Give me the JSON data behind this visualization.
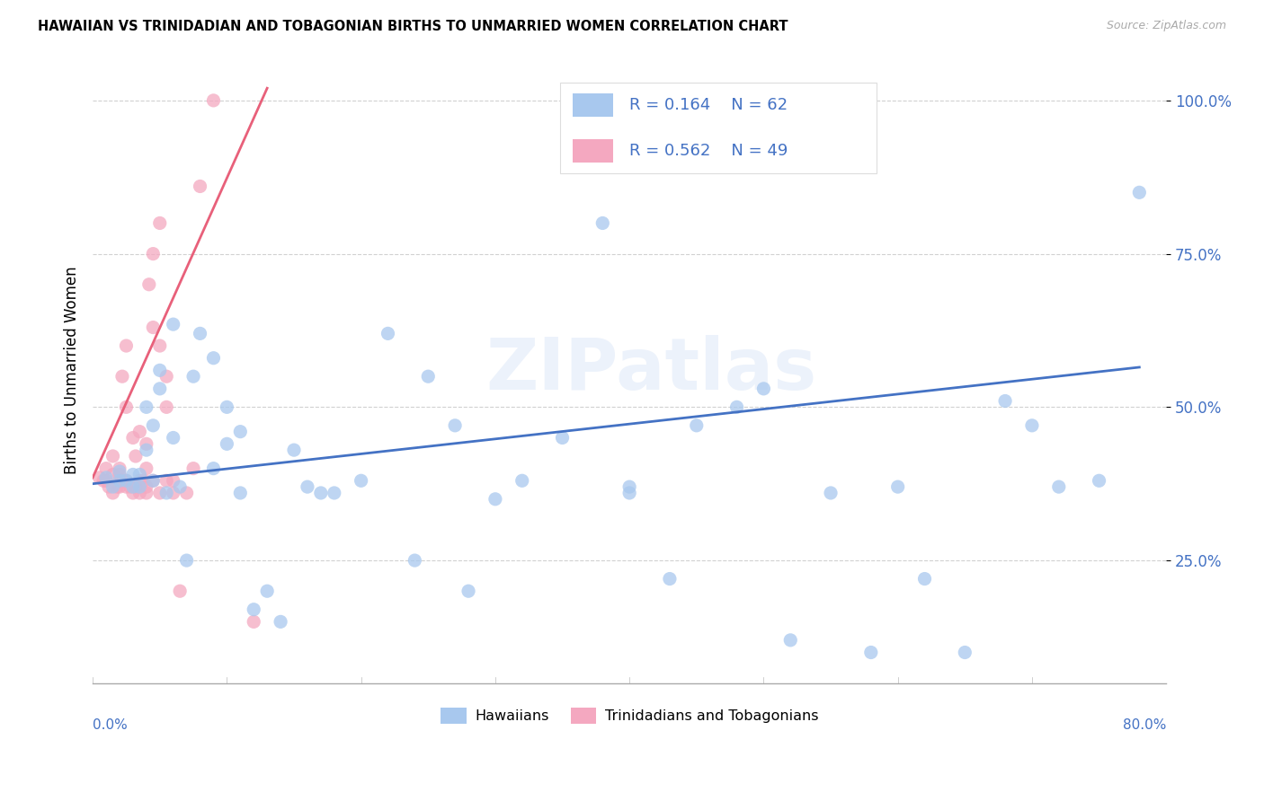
{
  "title": "HAWAIIAN VS TRINIDADIAN AND TOBAGONIAN BIRTHS TO UNMARRIED WOMEN CORRELATION CHART",
  "source": "Source: ZipAtlas.com",
  "ylabel": "Births to Unmarried Women",
  "xmin": 0.0,
  "xmax": 0.8,
  "ymin": 0.05,
  "ymax": 1.07,
  "legend_R1": "R = 0.164",
  "legend_N1": "N = 62",
  "legend_R2": "R = 0.562",
  "legend_N2": "N = 49",
  "hawaiian_color": "#A8C8EE",
  "trinidadian_color": "#F4A8C0",
  "trendline_hawaiian_color": "#4472C4",
  "trendline_trinidadian_color": "#E8607A",
  "watermark": "ZIPatlas",
  "hawaiian_x": [
    0.01,
    0.015,
    0.02,
    0.02,
    0.025,
    0.03,
    0.03,
    0.035,
    0.035,
    0.04,
    0.04,
    0.045,
    0.045,
    0.05,
    0.05,
    0.055,
    0.06,
    0.06,
    0.065,
    0.07,
    0.075,
    0.08,
    0.09,
    0.09,
    0.1,
    0.1,
    0.11,
    0.11,
    0.12,
    0.13,
    0.14,
    0.15,
    0.16,
    0.17,
    0.18,
    0.2,
    0.22,
    0.24,
    0.25,
    0.27,
    0.28,
    0.3,
    0.32,
    0.35,
    0.38,
    0.4,
    0.4,
    0.43,
    0.45,
    0.48,
    0.5,
    0.52,
    0.55,
    0.58,
    0.6,
    0.62,
    0.65,
    0.68,
    0.7,
    0.72,
    0.75,
    0.78
  ],
  "hawaiian_y": [
    0.385,
    0.37,
    0.395,
    0.38,
    0.38,
    0.37,
    0.39,
    0.37,
    0.39,
    0.43,
    0.5,
    0.38,
    0.47,
    0.56,
    0.53,
    0.36,
    0.45,
    0.635,
    0.37,
    0.25,
    0.55,
    0.62,
    0.4,
    0.58,
    0.44,
    0.5,
    0.36,
    0.46,
    0.17,
    0.2,
    0.15,
    0.43,
    0.37,
    0.36,
    0.36,
    0.38,
    0.62,
    0.25,
    0.55,
    0.47,
    0.2,
    0.35,
    0.38,
    0.45,
    0.8,
    0.37,
    0.36,
    0.22,
    0.47,
    0.5,
    0.53,
    0.12,
    0.36,
    0.1,
    0.37,
    0.22,
    0.1,
    0.51,
    0.47,
    0.37,
    0.38,
    0.85
  ],
  "trinidadian_x": [
    0.005,
    0.008,
    0.01,
    0.01,
    0.012,
    0.015,
    0.015,
    0.015,
    0.018,
    0.02,
    0.02,
    0.02,
    0.022,
    0.022,
    0.025,
    0.025,
    0.025,
    0.025,
    0.028,
    0.03,
    0.03,
    0.032,
    0.032,
    0.035,
    0.035,
    0.035,
    0.038,
    0.04,
    0.04,
    0.04,
    0.04,
    0.042,
    0.045,
    0.045,
    0.045,
    0.05,
    0.05,
    0.05,
    0.055,
    0.055,
    0.055,
    0.06,
    0.06,
    0.065,
    0.07,
    0.075,
    0.08,
    0.09,
    0.12
  ],
  "trinidadian_y": [
    0.385,
    0.38,
    0.38,
    0.4,
    0.37,
    0.36,
    0.39,
    0.42,
    0.37,
    0.37,
    0.39,
    0.4,
    0.38,
    0.55,
    0.37,
    0.38,
    0.5,
    0.6,
    0.37,
    0.36,
    0.45,
    0.37,
    0.42,
    0.36,
    0.38,
    0.46,
    0.38,
    0.36,
    0.37,
    0.4,
    0.44,
    0.7,
    0.38,
    0.63,
    0.75,
    0.8,
    0.6,
    0.36,
    0.38,
    0.55,
    0.5,
    0.36,
    0.38,
    0.2,
    0.36,
    0.4,
    0.86,
    1.0,
    0.15
  ],
  "trendline_haw_x0": 0.0,
  "trendline_haw_x1": 0.78,
  "trendline_haw_y0": 0.375,
  "trendline_haw_y1": 0.565,
  "trendline_tri_x0": 0.0,
  "trendline_tri_x1": 0.13,
  "trendline_tri_y0": 0.385,
  "trendline_tri_y1": 1.02
}
